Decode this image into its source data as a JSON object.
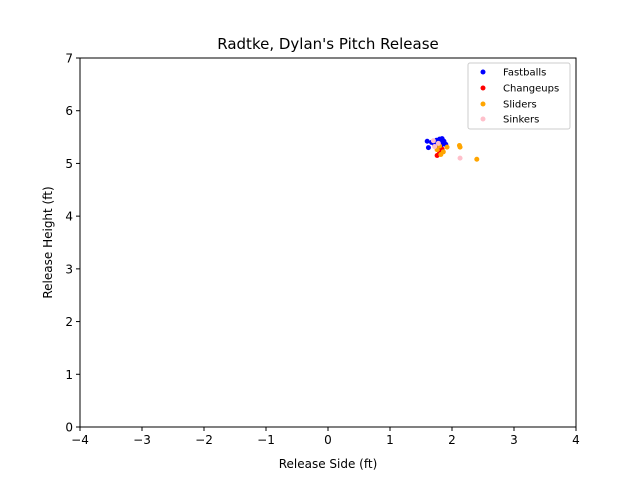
{
  "chart_data": {
    "type": "scatter",
    "title": "Radtke, Dylan's Pitch Release",
    "xlabel": "Release Side (ft)",
    "ylabel": "Release Height (ft)",
    "xlim": [
      -4,
      4
    ],
    "ylim": [
      0,
      7
    ],
    "xticks": [
      -4,
      -3,
      -2,
      -1,
      0,
      1,
      2,
      3,
      4
    ],
    "yticks": [
      0,
      1,
      2,
      3,
      4,
      5,
      6,
      7
    ],
    "xtick_labels": [
      "−4",
      "−3",
      "−2",
      "−1",
      "0",
      "1",
      "2",
      "3",
      "4"
    ],
    "ytick_labels": [
      "0",
      "1",
      "2",
      "3",
      "4",
      "5",
      "6",
      "7"
    ],
    "grid": false,
    "legend_position": "top-right",
    "series": [
      {
        "name": "Fastballs",
        "color": "#0000ff",
        "points": [
          [
            1.6,
            5.42
          ],
          [
            1.62,
            5.3
          ],
          [
            1.67,
            5.4
          ],
          [
            1.72,
            5.35
          ],
          [
            1.75,
            5.44
          ],
          [
            1.78,
            5.38
          ],
          [
            1.8,
            5.46
          ],
          [
            1.82,
            5.41
          ],
          [
            1.83,
            5.35
          ],
          [
            1.85,
            5.44
          ],
          [
            1.87,
            5.42
          ],
          [
            1.88,
            5.38
          ],
          [
            1.9,
            5.36
          ],
          [
            1.78,
            5.3
          ],
          [
            1.84,
            5.47
          ]
        ]
      },
      {
        "name": "Changeups",
        "color": "#ff0000",
        "points": [
          [
            1.76,
            5.15
          ],
          [
            1.8,
            5.2
          ],
          [
            1.84,
            5.27
          ]
        ]
      },
      {
        "name": "Sliders",
        "color": "#ffa500",
        "points": [
          [
            1.76,
            5.26
          ],
          [
            1.82,
            5.17
          ],
          [
            1.86,
            5.22
          ],
          [
            1.92,
            5.31
          ],
          [
            2.12,
            5.34
          ],
          [
            2.13,
            5.31
          ],
          [
            2.4,
            5.08
          ],
          [
            1.8,
            5.33
          ]
        ]
      },
      {
        "name": "Sinkers",
        "color": "#ffc0cb",
        "points": [
          [
            1.7,
            5.43
          ],
          [
            1.72,
            5.32
          ],
          [
            1.78,
            5.38
          ],
          [
            2.13,
            5.1
          ]
        ]
      }
    ]
  }
}
